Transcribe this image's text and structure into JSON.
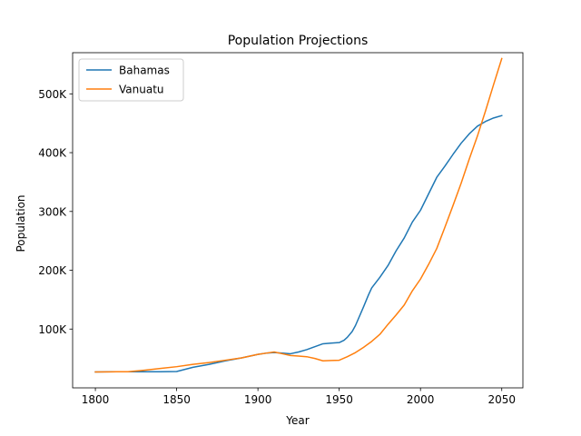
{
  "chart_data": {
    "type": "line",
    "title": "Population Projections",
    "xlabel": "Year",
    "ylabel": "Population",
    "xlim": [
      1786,
      2063
    ],
    "ylim": [
      0,
      570000
    ],
    "xticks": [
      1800,
      1850,
      1900,
      1950,
      2000,
      2050
    ],
    "yticks": [
      {
        "value": 100000,
        "label": "100K"
      },
      {
        "value": 200000,
        "label": "200K"
      },
      {
        "value": 300000,
        "label": "300K"
      },
      {
        "value": 400000,
        "label": "400K"
      },
      {
        "value": 500000,
        "label": "500K"
      }
    ],
    "legend_position": "top-left",
    "grid": false,
    "series": [
      {
        "name": "Bahamas",
        "color": "#1f77b4",
        "points": [
          [
            1800,
            27000
          ],
          [
            1810,
            27500
          ],
          [
            1820,
            27500
          ],
          [
            1830,
            27500
          ],
          [
            1840,
            27500
          ],
          [
            1850,
            27800
          ],
          [
            1860,
            35000
          ],
          [
            1870,
            40000
          ],
          [
            1880,
            46000
          ],
          [
            1890,
            51000
          ],
          [
            1900,
            57000
          ],
          [
            1905,
            59000
          ],
          [
            1910,
            60000
          ],
          [
            1915,
            59000
          ],
          [
            1920,
            58000
          ],
          [
            1925,
            61000
          ],
          [
            1930,
            65000
          ],
          [
            1935,
            70000
          ],
          [
            1940,
            75000
          ],
          [
            1945,
            76000
          ],
          [
            1950,
            77000
          ],
          [
            1953,
            81000
          ],
          [
            1955,
            86000
          ],
          [
            1958,
            96000
          ],
          [
            1960,
            106000
          ],
          [
            1965,
            138000
          ],
          [
            1968,
            158000
          ],
          [
            1970,
            170000
          ],
          [
            1975,
            188000
          ],
          [
            1980,
            208000
          ],
          [
            1985,
            233000
          ],
          [
            1990,
            255000
          ],
          [
            1995,
            282000
          ],
          [
            2000,
            302000
          ],
          [
            2005,
            330000
          ],
          [
            2010,
            358000
          ],
          [
            2015,
            377000
          ],
          [
            2020,
            397000
          ],
          [
            2025,
            416000
          ],
          [
            2030,
            432000
          ],
          [
            2035,
            445000
          ],
          [
            2040,
            453000
          ],
          [
            2045,
            459000
          ],
          [
            2050,
            463000
          ]
        ]
      },
      {
        "name": "Vanuatu",
        "color": "#ff7f0e",
        "points": [
          [
            1800,
            27000
          ],
          [
            1810,
            27300
          ],
          [
            1820,
            27500
          ],
          [
            1830,
            30000
          ],
          [
            1840,
            33000
          ],
          [
            1850,
            36000
          ],
          [
            1860,
            40000
          ],
          [
            1870,
            43000
          ],
          [
            1880,
            47000
          ],
          [
            1890,
            51000
          ],
          [
            1900,
            57000
          ],
          [
            1905,
            59000
          ],
          [
            1910,
            61000
          ],
          [
            1915,
            58000
          ],
          [
            1920,
            55000
          ],
          [
            1925,
            54000
          ],
          [
            1930,
            53000
          ],
          [
            1935,
            50000
          ],
          [
            1940,
            46000
          ],
          [
            1945,
            46500
          ],
          [
            1950,
            47000
          ],
          [
            1955,
            53000
          ],
          [
            1960,
            60000
          ],
          [
            1965,
            69000
          ],
          [
            1970,
            79000
          ],
          [
            1975,
            91000
          ],
          [
            1980,
            108000
          ],
          [
            1985,
            124000
          ],
          [
            1990,
            141000
          ],
          [
            1995,
            165000
          ],
          [
            2000,
            185000
          ],
          [
            2005,
            210000
          ],
          [
            2010,
            237000
          ],
          [
            2015,
            273000
          ],
          [
            2020,
            310000
          ],
          [
            2025,
            348000
          ],
          [
            2030,
            389000
          ],
          [
            2035,
            428000
          ],
          [
            2040,
            471000
          ],
          [
            2045,
            516000
          ],
          [
            2050,
            560000
          ]
        ]
      }
    ]
  }
}
